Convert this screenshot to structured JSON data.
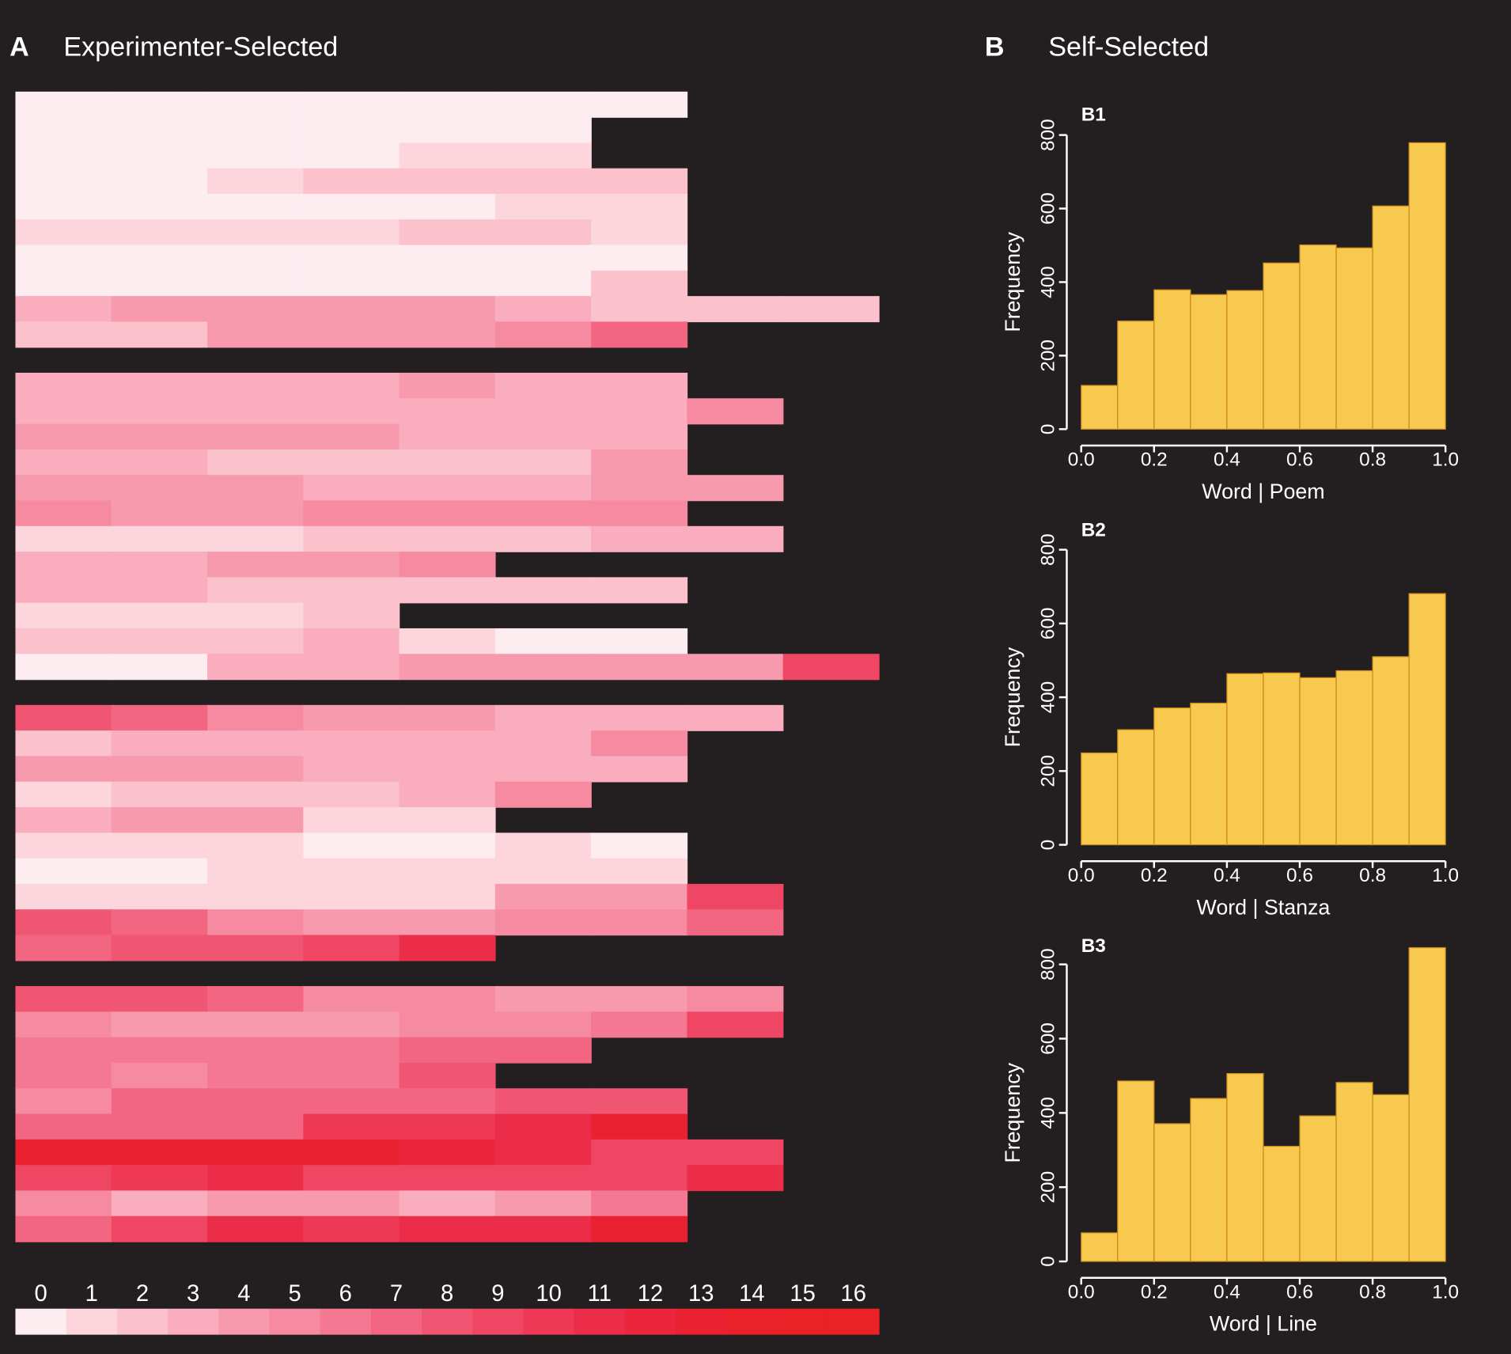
{
  "background": "#231f20",
  "panel_a": {
    "letter": "A",
    "title": "Experimenter-Selected"
  },
  "panel_b": {
    "letter": "B",
    "title": "Self-Selected"
  },
  "chart_data": [
    {
      "type": "heatmap",
      "panel": "A",
      "title": "Experimenter-Selected",
      "groups": [
        [
          [
            0,
            0,
            0,
            0,
            0,
            0,
            0
          ],
          [
            0,
            0,
            0,
            0,
            0,
            0
          ],
          [
            0,
            0,
            0,
            0,
            1,
            1
          ],
          [
            0,
            0,
            1,
            2,
            2,
            2,
            2
          ],
          [
            0,
            0,
            0,
            0,
            0,
            1,
            1
          ],
          [
            1,
            1,
            1,
            1,
            2,
            2,
            1
          ],
          [
            0,
            0,
            0,
            0,
            0,
            0,
            0
          ],
          [
            0,
            0,
            0,
            0,
            0,
            0,
            2
          ],
          [
            3,
            4,
            4,
            4,
            4,
            3,
            2,
            2,
            2
          ],
          [
            2,
            2,
            4,
            4,
            4,
            5,
            7
          ]
        ],
        [
          [
            3,
            3,
            3,
            3,
            4,
            3,
            3
          ],
          [
            3,
            3,
            3,
            3,
            3,
            3,
            3,
            5
          ],
          [
            4,
            4,
            4,
            4,
            3,
            3,
            3
          ],
          [
            3,
            3,
            2,
            2,
            2,
            2,
            4
          ],
          [
            4,
            4,
            4,
            3,
            3,
            3,
            4,
            4
          ],
          [
            5,
            4,
            4,
            5,
            5,
            5,
            5
          ],
          [
            1,
            1,
            1,
            2,
            2,
            2,
            3,
            3
          ],
          [
            3,
            3,
            4,
            4,
            5
          ],
          [
            3,
            3,
            2,
            2,
            2,
            2,
            2
          ],
          [
            1,
            1,
            1,
            2
          ],
          [
            2,
            2,
            2,
            3,
            1,
            0,
            0
          ],
          [
            0,
            0,
            3,
            3,
            4,
            4,
            4,
            4,
            9
          ]
        ],
        [
          [
            8,
            7,
            5,
            4,
            4,
            3,
            3,
            3
          ],
          [
            2,
            3,
            3,
            3,
            3,
            3,
            5
          ],
          [
            4,
            4,
            4,
            3,
            3,
            3,
            3
          ],
          [
            1,
            2,
            2,
            2,
            3,
            5
          ],
          [
            3,
            4,
            4,
            1,
            1
          ],
          [
            1,
            1,
            1,
            0,
            0,
            1,
            0
          ],
          [
            0,
            0,
            1,
            1,
            1,
            1,
            1
          ],
          [
            1,
            1,
            1,
            1,
            1,
            4,
            4,
            9
          ],
          [
            8,
            7,
            5,
            4,
            4,
            5,
            5,
            7
          ],
          [
            7,
            8,
            8,
            9,
            11
          ]
        ],
        [
          [
            8,
            8,
            7,
            5,
            5,
            4,
            4,
            5
          ],
          [
            5,
            4,
            4,
            4,
            5,
            5,
            6,
            9
          ],
          [
            6,
            6,
            6,
            6,
            7,
            7
          ],
          [
            6,
            5,
            6,
            6,
            8
          ],
          [
            5,
            7,
            7,
            7,
            7,
            8,
            8
          ],
          [
            7,
            7,
            7,
            10,
            10,
            11,
            13
          ],
          [
            13,
            13,
            13,
            13,
            12,
            11,
            9,
            9
          ],
          [
            9,
            10,
            11,
            9,
            9,
            9,
            9,
            11
          ],
          [
            5,
            3,
            4,
            4,
            3,
            4,
            6
          ],
          [
            7,
            9,
            11,
            10,
            11,
            11,
            13
          ]
        ]
      ],
      "colorbar": {
        "ticks": [
          "0",
          "1",
          "2",
          "3",
          "4",
          "5",
          "6",
          "7",
          "8",
          "9",
          "10",
          "11",
          "12",
          "13",
          "14",
          "15",
          "16"
        ],
        "colors": [
          "#fdedf1",
          "#fcd5dd",
          "#fbc1cd",
          "#f9adbe",
          "#f79aae",
          "#f68aa0",
          "#f47891",
          "#f26681",
          "#f05572",
          "#ef4663",
          "#ee3856",
          "#ec2d49",
          "#eb253c",
          "#ea2130",
          "#ea2129",
          "#ea2127",
          "#ea2125"
        ]
      }
    },
    {
      "type": "bar",
      "subtype": "histogram",
      "label": "B1",
      "xlabel": "Word | Poem",
      "ylabel": "Frequency",
      "bin_edges": [
        0.0,
        0.1,
        0.2,
        0.3,
        0.4,
        0.5,
        0.6,
        0.7,
        0.8,
        0.9,
        1.0
      ],
      "values": [
        119,
        294,
        379,
        366,
        377,
        452,
        501,
        493,
        607,
        779
      ],
      "xlim": [
        0,
        1
      ],
      "ylim": [
        0,
        800
      ],
      "xticks": [
        "0.0",
        "0.2",
        "0.4",
        "0.6",
        "0.8",
        "1.0"
      ],
      "yticks": [
        "0",
        "200",
        "400",
        "600",
        "800"
      ],
      "bar_color": "#f8c94f",
      "edge_color": "#c98a1a"
    },
    {
      "type": "bar",
      "subtype": "histogram",
      "label": "B2",
      "xlabel": "Word | Stanza",
      "ylabel": "Frequency",
      "bin_edges": [
        0.0,
        0.1,
        0.2,
        0.3,
        0.4,
        0.5,
        0.6,
        0.7,
        0.8,
        0.9,
        1.0
      ],
      "values": [
        249,
        312,
        371,
        384,
        464,
        466,
        453,
        472,
        510,
        681
      ],
      "xlim": [
        0,
        1
      ],
      "ylim": [
        0,
        800
      ],
      "xticks": [
        "0.0",
        "0.2",
        "0.4",
        "0.6",
        "0.8",
        "1.0"
      ],
      "yticks": [
        "0",
        "200",
        "400",
        "600",
        "800"
      ],
      "bar_color": "#f8c94f",
      "edge_color": "#c98a1a"
    },
    {
      "type": "bar",
      "subtype": "histogram",
      "label": "B3",
      "xlabel": "Word | Line",
      "ylabel": "Frequency",
      "bin_edges": [
        0.0,
        0.1,
        0.2,
        0.3,
        0.4,
        0.5,
        0.6,
        0.7,
        0.8,
        0.9,
        1.0
      ],
      "values": [
        77,
        486,
        371,
        439,
        506,
        310,
        392,
        482,
        449,
        845
      ],
      "xlim": [
        0,
        1
      ],
      "ylim": [
        0,
        800
      ],
      "xticks": [
        "0.0",
        "0.2",
        "0.4",
        "0.6",
        "0.8",
        "1.0"
      ],
      "yticks": [
        "0",
        "200",
        "400",
        "600",
        "800"
      ],
      "bar_color": "#f8c94f",
      "edge_color": "#c98a1a"
    }
  ]
}
